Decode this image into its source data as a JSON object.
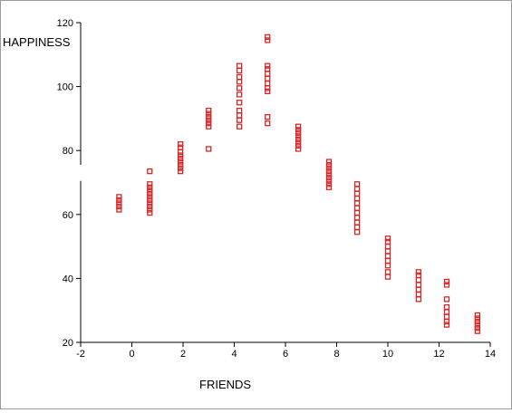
{
  "chart_data": {
    "type": "scatter",
    "xlabel": "FRIENDS",
    "ylabel": "HAPPINESS",
    "xlim": [
      -2,
      14
    ],
    "ylim": [
      20,
      120
    ],
    "x_ticks": [
      "-2",
      "0",
      "2",
      "4",
      "6",
      "8",
      "10",
      "12",
      "14"
    ],
    "y_ticks": [
      "20",
      "40",
      "60",
      "80",
      "100",
      "120"
    ],
    "grid": false,
    "legend": "none",
    "marker": "square",
    "marker_color": "#d62728",
    "series": [
      {
        "points": [
          [
            -0.5,
            61.5
          ],
          [
            -0.5,
            62.5
          ],
          [
            -0.5,
            63.5
          ],
          [
            -0.5,
            64.5
          ],
          [
            -0.5,
            65.5
          ],
          [
            0.7,
            60.5
          ],
          [
            0.7,
            61.5
          ],
          [
            0.7,
            62.5
          ],
          [
            0.7,
            63.5
          ],
          [
            0.7,
            64.5
          ],
          [
            0.7,
            65.5
          ],
          [
            0.7,
            66.5
          ],
          [
            0.7,
            67.5
          ],
          [
            0.7,
            68.5
          ],
          [
            0.7,
            69.5
          ],
          [
            0.7,
            73.5
          ],
          [
            1.9,
            73.5
          ],
          [
            1.9,
            74.5
          ],
          [
            1.9,
            75.5
          ],
          [
            1.9,
            76.5
          ],
          [
            1.9,
            77.5
          ],
          [
            1.9,
            78.5
          ],
          [
            1.9,
            79.5
          ],
          [
            1.9,
            81
          ],
          [
            1.9,
            82
          ],
          [
            3.0,
            80.5
          ],
          [
            3.0,
            87.5
          ],
          [
            3.0,
            88.5
          ],
          [
            3.0,
            89.5
          ],
          [
            3.0,
            90.5
          ],
          [
            3.0,
            91.5
          ],
          [
            3.0,
            92.5
          ],
          [
            4.2,
            87.5
          ],
          [
            4.2,
            89.5
          ],
          [
            4.2,
            91
          ],
          [
            4.2,
            92.5
          ],
          [
            4.2,
            95
          ],
          [
            4.2,
            97.5
          ],
          [
            4.2,
            99.5
          ],
          [
            4.2,
            101.5
          ],
          [
            4.2,
            103
          ],
          [
            4.2,
            105
          ],
          [
            4.2,
            106.5
          ],
          [
            5.3,
            88.5
          ],
          [
            5.3,
            90.5
          ],
          [
            5.3,
            98.5
          ],
          [
            5.3,
            99.5
          ],
          [
            5.3,
            101
          ],
          [
            5.3,
            102.5
          ],
          [
            5.3,
            104
          ],
          [
            5.3,
            105.5
          ],
          [
            5.3,
            106.5
          ],
          [
            5.3,
            114.5
          ],
          [
            5.3,
            115.5
          ],
          [
            6.5,
            80.5
          ],
          [
            6.5,
            81.5
          ],
          [
            6.5,
            82.5
          ],
          [
            6.5,
            83.5
          ],
          [
            6.5,
            84.5
          ],
          [
            6.5,
            85.5
          ],
          [
            6.5,
            86.5
          ],
          [
            6.5,
            87.5
          ],
          [
            7.7,
            68.5
          ],
          [
            7.7,
            69.5
          ],
          [
            7.7,
            70.5
          ],
          [
            7.7,
            71.5
          ],
          [
            7.7,
            72.5
          ],
          [
            7.7,
            73.5
          ],
          [
            7.7,
            74.5
          ],
          [
            7.7,
            75.5
          ],
          [
            7.7,
            76.5
          ],
          [
            8.8,
            54.5
          ],
          [
            8.8,
            56
          ],
          [
            8.8,
            57.5
          ],
          [
            8.8,
            59
          ],
          [
            8.8,
            60.5
          ],
          [
            8.8,
            62
          ],
          [
            8.8,
            63.5
          ],
          [
            8.8,
            65
          ],
          [
            8.8,
            66.5
          ],
          [
            8.8,
            68
          ],
          [
            8.8,
            69.5
          ],
          [
            10.0,
            40.5
          ],
          [
            10.0,
            42
          ],
          [
            10.0,
            44
          ],
          [
            10.0,
            45.5
          ],
          [
            10.0,
            47
          ],
          [
            10.0,
            48.5
          ],
          [
            10.0,
            50
          ],
          [
            10.0,
            51.5
          ],
          [
            10.0,
            52.5
          ],
          [
            11.2,
            33.5
          ],
          [
            11.2,
            35
          ],
          [
            11.2,
            36.5
          ],
          [
            11.2,
            38
          ],
          [
            11.2,
            39.5
          ],
          [
            11.2,
            41
          ],
          [
            11.2,
            42
          ],
          [
            12.3,
            25.5
          ],
          [
            12.3,
            26.5
          ],
          [
            12.3,
            28
          ],
          [
            12.3,
            29.5
          ],
          [
            12.3,
            31
          ],
          [
            12.3,
            33.5
          ],
          [
            12.3,
            38
          ],
          [
            12.3,
            39
          ],
          [
            13.5,
            23.5
          ],
          [
            13.5,
            24.5
          ],
          [
            13.5,
            25.5
          ],
          [
            13.5,
            26.5
          ],
          [
            13.5,
            27.5
          ],
          [
            13.5,
            28.5
          ]
        ]
      }
    ]
  }
}
